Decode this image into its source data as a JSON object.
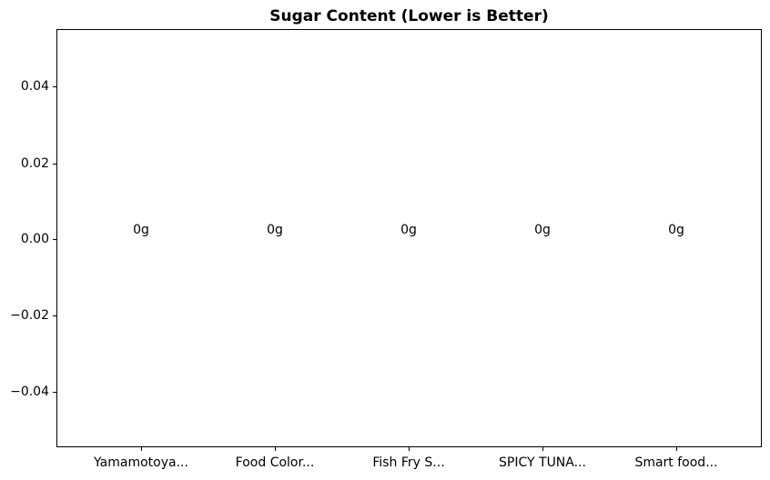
{
  "chart_data": {
    "type": "bar",
    "title": "Sugar Content (Lower is Better)",
    "categories": [
      "Yamamotoya...",
      "Food Color...",
      "Fish Fry S...",
      "SPICY TUNA...",
      "Smart food..."
    ],
    "values": [
      0,
      0,
      0,
      0,
      0
    ],
    "bar_labels": [
      "0g",
      "0g",
      "0g",
      "0g",
      "0g"
    ],
    "unit": "g",
    "xlabel": "",
    "ylabel": "",
    "yticks": [
      "0.04",
      "0.02",
      "0.00",
      "−0.02",
      "−0.04"
    ],
    "ytick_values": [
      0.04,
      0.02,
      0.0,
      -0.02,
      -0.04
    ],
    "ylim": [
      -0.055,
      0.055
    ],
    "grid": "off",
    "legend": "none",
    "colors": {
      "background": "#ffffff",
      "text": "#000000",
      "spine": "#000000"
    }
  }
}
